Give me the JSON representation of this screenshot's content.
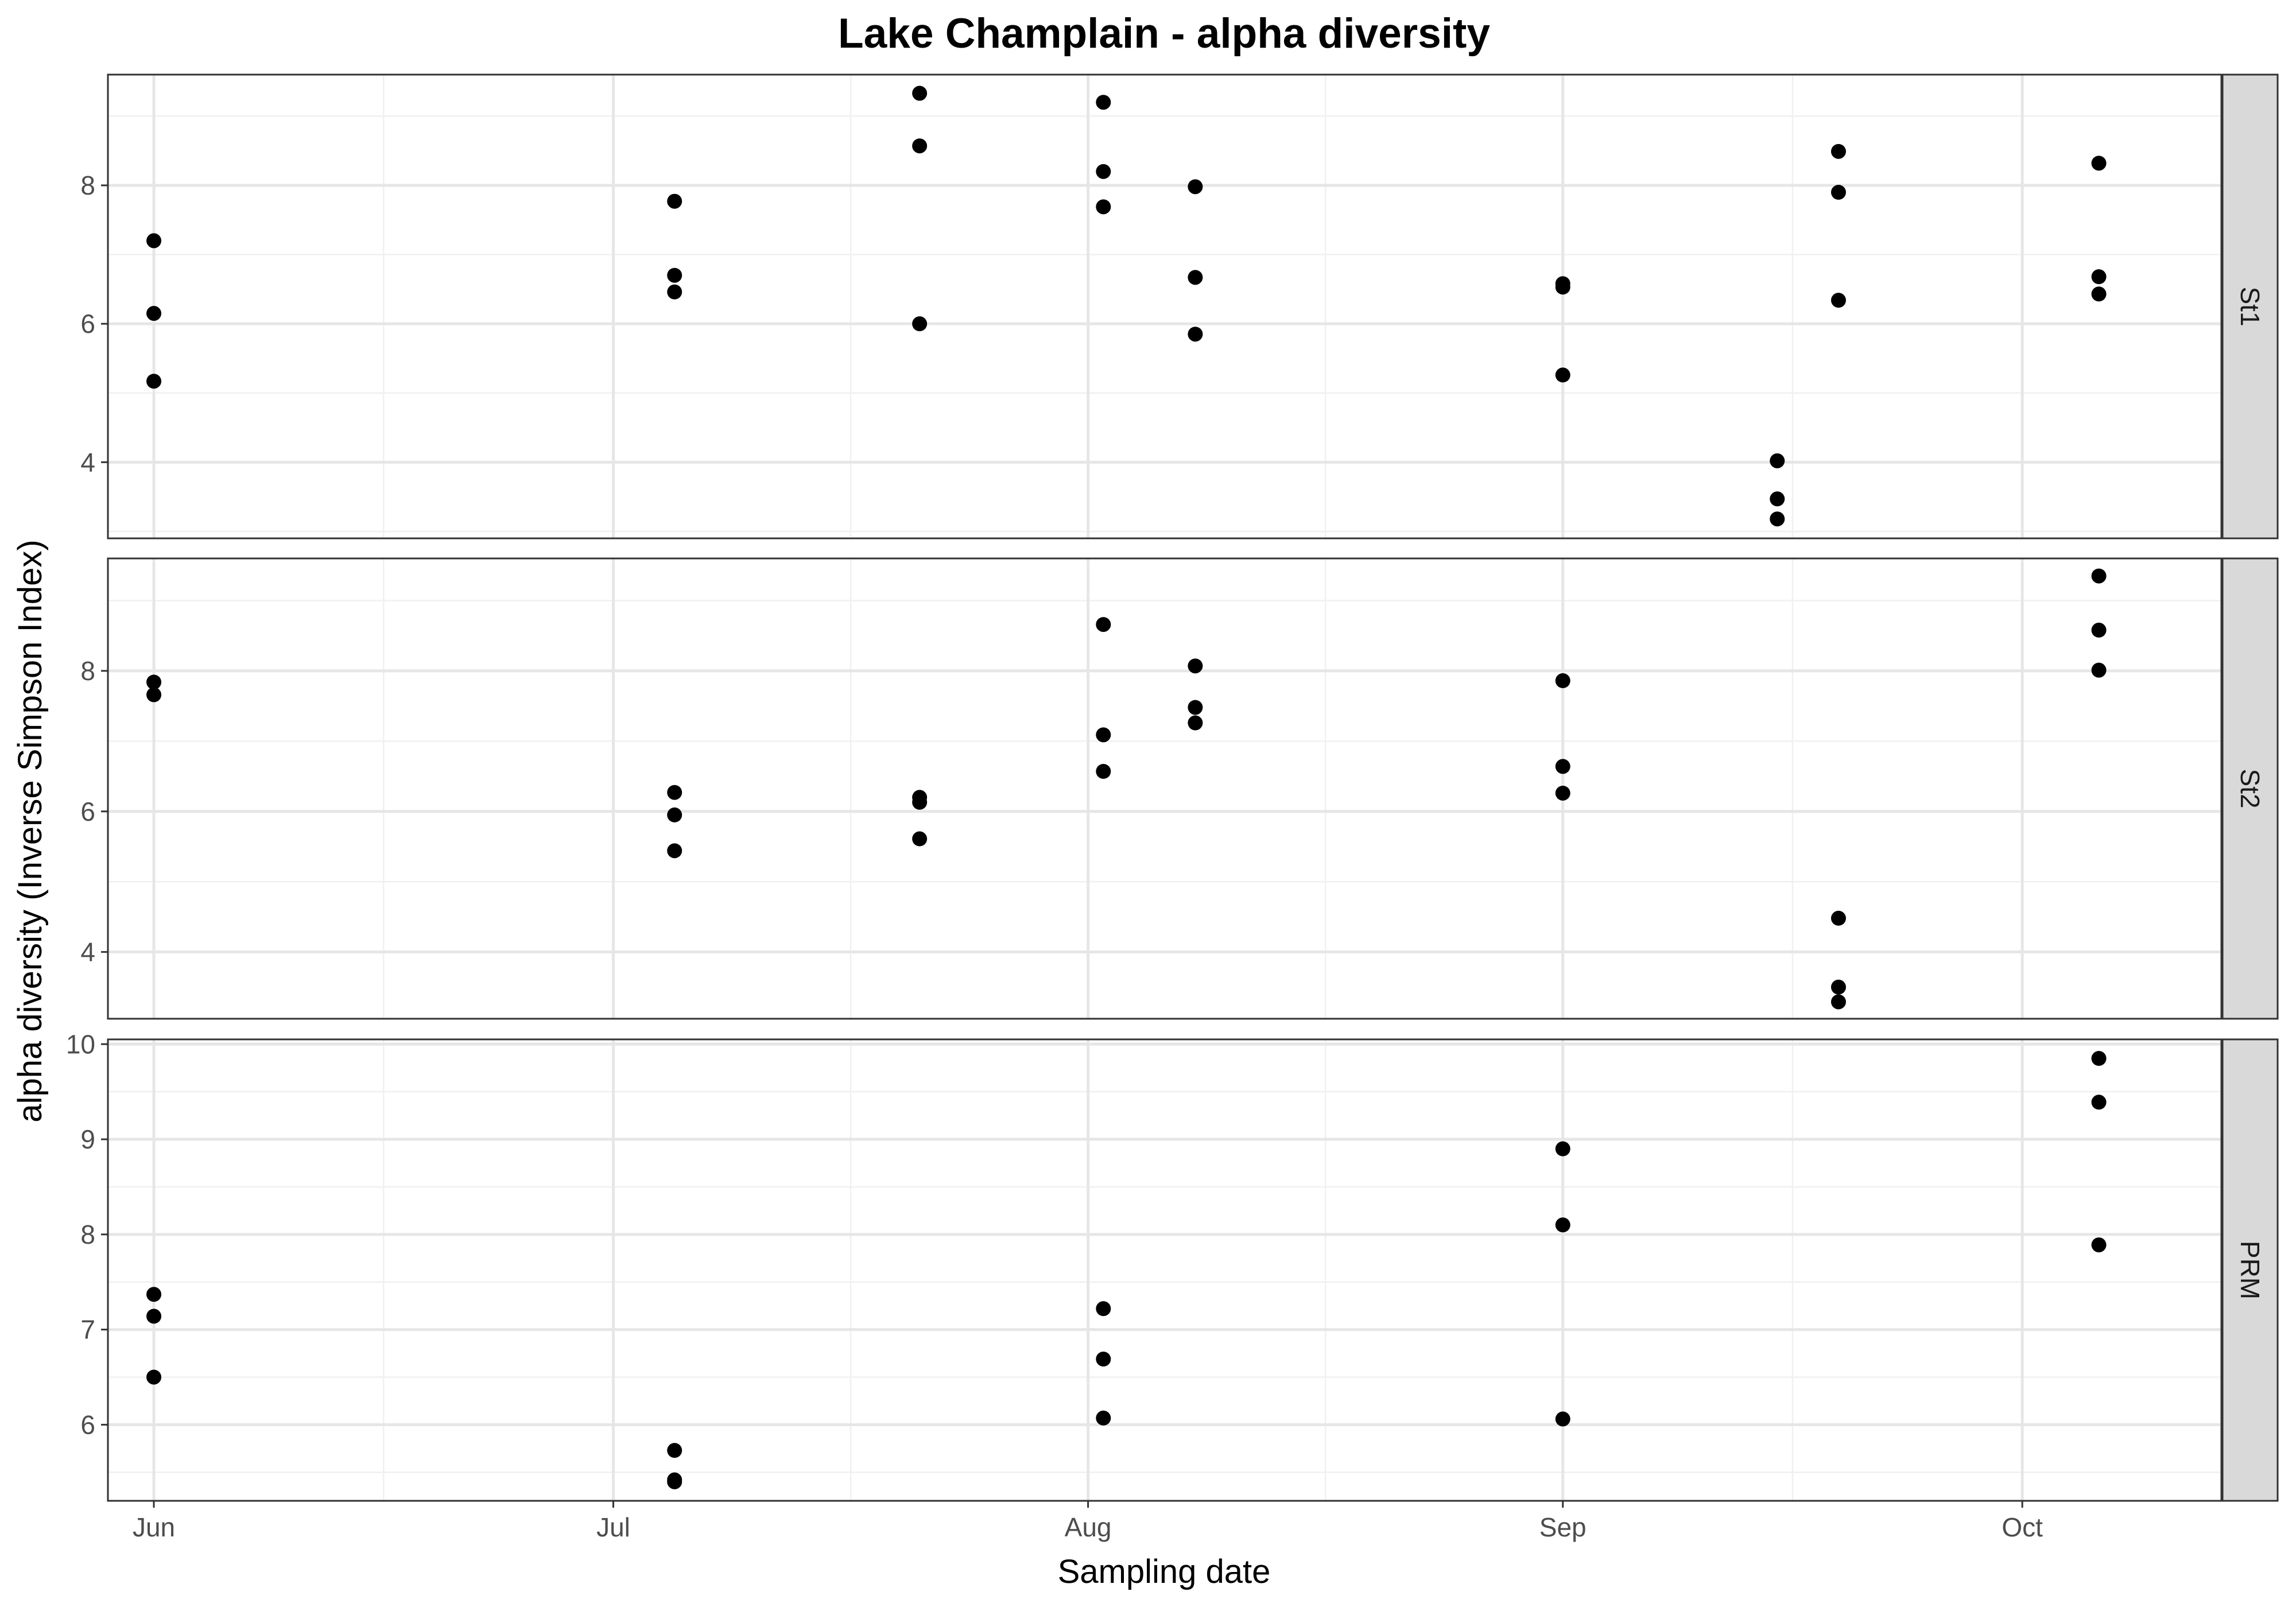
{
  "chart_data": {
    "type": "scatter",
    "title": "Lake Champlain - alpha diversity",
    "xlabel": "Sampling date",
    "ylabel": "alpha diversity (Inverse Simpson Index)",
    "x_axis": {
      "type": "date",
      "range": [
        "2019-05-29",
        "2019-10-14"
      ],
      "ticks": [
        {
          "value": "2019-06-01",
          "label": "Jun"
        },
        {
          "value": "2019-07-01",
          "label": "Jul"
        },
        {
          "value": "2019-08-01",
          "label": "Aug"
        },
        {
          "value": "2019-09-01",
          "label": "Sep"
        },
        {
          "value": "2019-10-01",
          "label": "Oct"
        }
      ]
    },
    "grid": true,
    "point_color": "#000000",
    "panels": [
      {
        "name": "St1",
        "ylim": [
          2.9,
          9.6
        ],
        "y_ticks": [
          4,
          6,
          8
        ],
        "points": [
          {
            "x": "2019-06-01",
            "y": 7.2
          },
          {
            "x": "2019-06-01",
            "y": 6.15
          },
          {
            "x": "2019-06-01",
            "y": 5.17
          },
          {
            "x": "2019-07-05",
            "y": 7.77
          },
          {
            "x": "2019-07-05",
            "y": 6.7
          },
          {
            "x": "2019-07-05",
            "y": 6.46
          },
          {
            "x": "2019-07-21",
            "y": 9.33
          },
          {
            "x": "2019-07-21",
            "y": 8.57
          },
          {
            "x": "2019-07-21",
            "y": 6.0
          },
          {
            "x": "2019-08-02",
            "y": 9.2
          },
          {
            "x": "2019-08-02",
            "y": 8.2
          },
          {
            "x": "2019-08-02",
            "y": 7.69
          },
          {
            "x": "2019-08-08",
            "y": 7.98
          },
          {
            "x": "2019-08-08",
            "y": 6.67
          },
          {
            "x": "2019-08-08",
            "y": 5.85
          },
          {
            "x": "2019-09-01",
            "y": 6.58
          },
          {
            "x": "2019-09-01",
            "y": 6.53
          },
          {
            "x": "2019-09-01",
            "y": 5.26
          },
          {
            "x": "2019-09-15",
            "y": 4.02
          },
          {
            "x": "2019-09-15",
            "y": 3.47
          },
          {
            "x": "2019-09-15",
            "y": 3.18
          },
          {
            "x": "2019-09-19",
            "y": 8.49
          },
          {
            "x": "2019-09-19",
            "y": 7.9
          },
          {
            "x": "2019-09-19",
            "y": 6.34
          },
          {
            "x": "2019-10-06",
            "y": 8.32
          },
          {
            "x": "2019-10-06",
            "y": 6.68
          },
          {
            "x": "2019-10-06",
            "y": 6.43
          }
        ]
      },
      {
        "name": "St2",
        "ylim": [
          3.05,
          9.6
        ],
        "y_ticks": [
          4,
          6,
          8
        ],
        "points": [
          {
            "x": "2019-06-01",
            "y": 7.84
          },
          {
            "x": "2019-06-01",
            "y": 7.66
          },
          {
            "x": "2019-07-05",
            "y": 6.27
          },
          {
            "x": "2019-07-05",
            "y": 5.95
          },
          {
            "x": "2019-07-05",
            "y": 5.44
          },
          {
            "x": "2019-07-21",
            "y": 6.2
          },
          {
            "x": "2019-07-21",
            "y": 6.13
          },
          {
            "x": "2019-07-21",
            "y": 5.61
          },
          {
            "x": "2019-08-02",
            "y": 8.66
          },
          {
            "x": "2019-08-02",
            "y": 7.09
          },
          {
            "x": "2019-08-02",
            "y": 6.57
          },
          {
            "x": "2019-08-08",
            "y": 8.07
          },
          {
            "x": "2019-08-08",
            "y": 7.48
          },
          {
            "x": "2019-08-08",
            "y": 7.26
          },
          {
            "x": "2019-09-01",
            "y": 7.86
          },
          {
            "x": "2019-09-01",
            "y": 6.64
          },
          {
            "x": "2019-09-01",
            "y": 6.26
          },
          {
            "x": "2019-09-19",
            "y": 4.48
          },
          {
            "x": "2019-09-19",
            "y": 3.5
          },
          {
            "x": "2019-09-19",
            "y": 3.29
          },
          {
            "x": "2019-10-06",
            "y": 9.35
          },
          {
            "x": "2019-10-06",
            "y": 8.58
          },
          {
            "x": "2019-10-06",
            "y": 8.01
          }
        ]
      },
      {
        "name": "PRM",
        "ylim": [
          5.2,
          10.05
        ],
        "y_ticks": [
          6,
          7,
          8,
          9,
          10
        ],
        "points": [
          {
            "x": "2019-06-01",
            "y": 7.37
          },
          {
            "x": "2019-06-01",
            "y": 7.14
          },
          {
            "x": "2019-06-01",
            "y": 6.5
          },
          {
            "x": "2019-07-05",
            "y": 5.73
          },
          {
            "x": "2019-07-05",
            "y": 5.42
          },
          {
            "x": "2019-07-05",
            "y": 5.4
          },
          {
            "x": "2019-08-02",
            "y": 7.22
          },
          {
            "x": "2019-08-02",
            "y": 6.69
          },
          {
            "x": "2019-08-02",
            "y": 6.07
          },
          {
            "x": "2019-09-01",
            "y": 8.9
          },
          {
            "x": "2019-09-01",
            "y": 8.1
          },
          {
            "x": "2019-09-01",
            "y": 6.06
          },
          {
            "x": "2019-10-06",
            "y": 9.85
          },
          {
            "x": "2019-10-06",
            "y": 9.39
          },
          {
            "x": "2019-10-06",
            "y": 7.89
          }
        ]
      }
    ]
  }
}
